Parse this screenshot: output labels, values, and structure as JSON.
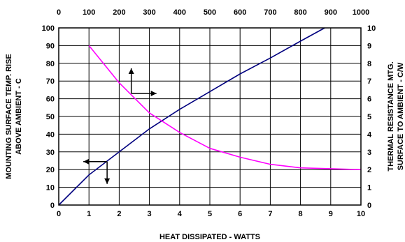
{
  "chart_data": {
    "type": "line",
    "x": [
      0,
      1,
      2,
      3,
      4,
      5,
      6,
      7,
      8,
      9,
      10
    ],
    "xlim": [
      0,
      10
    ],
    "x2lim": [
      0,
      1000
    ],
    "ylim": [
      0,
      100
    ],
    "y2lim": [
      0,
      10
    ],
    "x_ticks": [
      "0",
      "1",
      "2",
      "3",
      "4",
      "5",
      "6",
      "7",
      "8",
      "9",
      "10"
    ],
    "x2_ticks": [
      "0",
      "100",
      "200",
      "300",
      "400",
      "500",
      "600",
      "700",
      "800",
      "900",
      "1000"
    ],
    "y_ticks": [
      "0",
      "10",
      "20",
      "30",
      "40",
      "50",
      "60",
      "70",
      "80",
      "90",
      "100"
    ],
    "y2_ticks": [
      "0",
      "1",
      "2",
      "3",
      "4",
      "5",
      "6",
      "7",
      "8",
      "9",
      "10"
    ],
    "xlabel": "HEAT DISSIPATED - WATTS",
    "ylabel_lines": [
      "MOUNTING SURFACE TEMP. RISE",
      "ABOVE AMBIENT - C"
    ],
    "y2label_lines": [
      "THERMAL RESISTANCE MTG.",
      "SURFACE TO AMBIENT - C/W"
    ],
    "grid": true,
    "series": [
      {
        "axis": "primary",
        "color": "#00007f",
        "points": [
          [
            0,
            0
          ],
          [
            1,
            17
          ],
          [
            2,
            30
          ],
          [
            3,
            43
          ],
          [
            4,
            54
          ],
          [
            5,
            64
          ],
          [
            6,
            74
          ],
          [
            7,
            83
          ],
          [
            8,
            92.5
          ],
          [
            8.8,
            100
          ]
        ]
      },
      {
        "axis": "secondary",
        "color": "#ff00ff",
        "points": [
          [
            1,
            9.0
          ],
          [
            2,
            6.9
          ],
          [
            3,
            5.2
          ],
          [
            4,
            4.1
          ],
          [
            5,
            3.2
          ],
          [
            6,
            2.7
          ],
          [
            7,
            2.3
          ],
          [
            8,
            2.1
          ],
          [
            9,
            2.05
          ],
          [
            10,
            2.0
          ]
        ]
      }
    ],
    "arrows": [
      {
        "name": "secondary-axis-arrow",
        "directions": [
          "up",
          "right"
        ],
        "at": [
          2.4,
          63
        ]
      },
      {
        "name": "primary-axis-arrow",
        "directions": [
          "left",
          "down"
        ],
        "at": [
          1.6,
          24.5
        ]
      }
    ]
  }
}
